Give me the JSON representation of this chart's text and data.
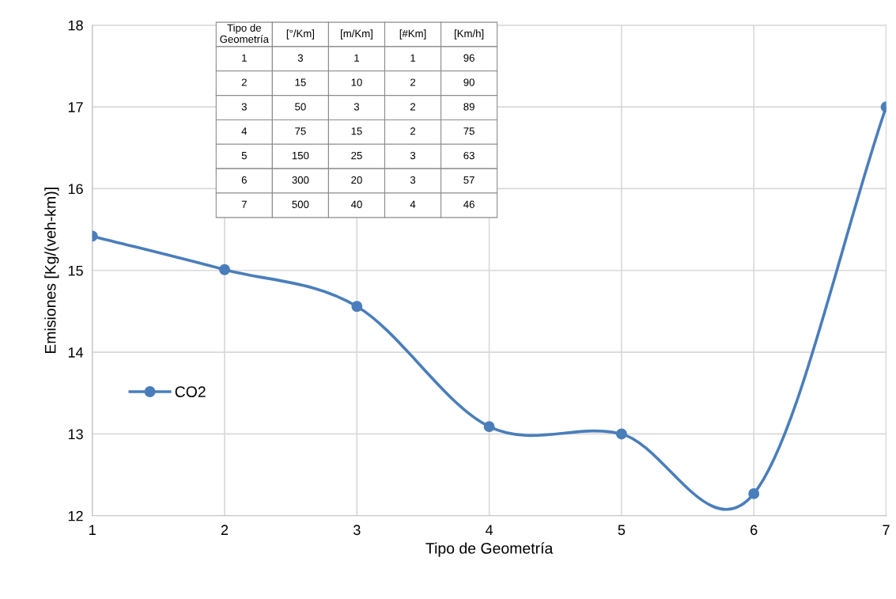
{
  "chart_data": {
    "type": "line",
    "xlabel": "Tipo de Geometría",
    "ylabel": "Emisiones [Kg/(veh-km)]",
    "x": [
      1,
      2,
      3,
      4,
      5,
      6,
      7
    ],
    "series": [
      {
        "name": "CO2",
        "color": "#4a7ebb",
        "values": [
          15.42,
          15.01,
          14.56,
          13.09,
          13.0,
          12.27,
          17.0
        ]
      }
    ],
    "xlim": [
      1,
      7
    ],
    "xticks": [
      1,
      2,
      3,
      4,
      5,
      6,
      7
    ],
    "ylim": [
      12,
      18
    ],
    "yticks": [
      12,
      13,
      14,
      15,
      16,
      17,
      18
    ],
    "grid": true,
    "legend": "left",
    "marker": "circle",
    "line_style": "solid",
    "annotations": [
      "Tipo de\nGeometría",
      "[°/Km]",
      "[m/Km]",
      "[#Km]",
      "[Km/h]",
      "1",
      "3",
      "1",
      "1",
      "96",
      "2",
      "15",
      "10",
      "2",
      "90",
      "3",
      "50",
      "3",
      "2",
      "89",
      "4",
      "75",
      "15",
      "2",
      "75",
      "5",
      "150",
      "25",
      "3",
      "63",
      "6",
      "300",
      "20",
      "3",
      "57",
      "7",
      "500",
      "40",
      "4",
      "46"
    ]
  }
}
